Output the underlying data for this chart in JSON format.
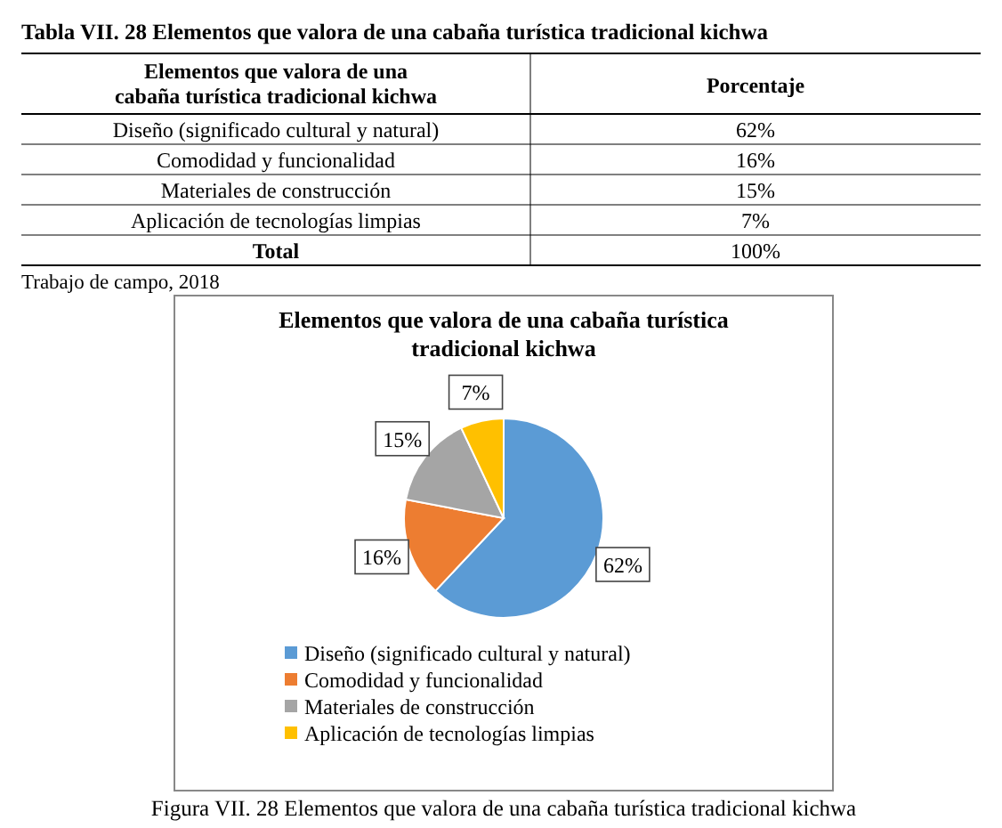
{
  "chart_data": [
    {
      "type": "other",
      "title": "Tabla VII. 28 Elementos que valora de una cabaña turística tradicional kichwa",
      "categories": [
        "Diseño (significado cultural y natural)",
        "Comodidad y funcionalidad",
        "Materiales de construcción",
        "Aplicación de tecnologías limpias"
      ],
      "value_labels": [
        "62%",
        "16%",
        "15%",
        "7%"
      ],
      "annotations": [
        "Elementos que valora de una cabaña turística tradicional kichwa",
        "Porcentaje",
        "Total",
        "100%",
        "Trabajo de campo, 2018"
      ]
    },
    {
      "type": "pie",
      "title": "Elementos que valora de una cabaña turística tradicional kichwa",
      "categories": [
        "Diseño (significado cultural y natural)",
        "Comodidad y funcionalidad",
        "Materiales de construcción",
        "Aplicación de tecnologías limpias"
      ],
      "values": [
        62,
        16,
        15,
        7
      ],
      "colors": [
        "#5b9bd5",
        "#ed7d31",
        "#a5a5a5",
        "#ffc000"
      ],
      "value_labels": [
        "62%",
        "16%",
        "15%",
        "7%"
      ],
      "legend": "bottom",
      "annotations": [
        "Figura VII. 28 Elementos que valora de una cabaña turística tradicional kichwa"
      ]
    }
  ]
}
